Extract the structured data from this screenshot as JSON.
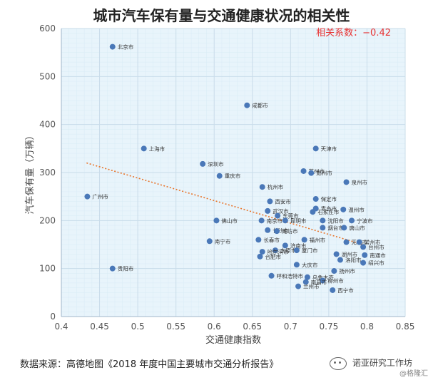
{
  "chart_data": {
    "type": "scatter",
    "title": "城市汽车保有量与交通健康状况的相关性",
    "xlabel": "交通健康指数",
    "ylabel": "汽车保有量（万辆）",
    "xlim": [
      0.4,
      0.85
    ],
    "ylim": [
      0,
      600
    ],
    "x_ticks": [
      "0.4",
      "0.45",
      "0.5",
      "0.55",
      "0.6",
      "0.65",
      "0.7",
      "0.75",
      "0.8",
      "0.85"
    ],
    "y_ticks": [
      "0",
      "100",
      "200",
      "300",
      "400",
      "500",
      "600"
    ],
    "grid": true,
    "annotation": "相关系数：−0.42",
    "trendline": {
      "x": [
        0.433,
        0.795
      ],
      "y": [
        320,
        150
      ]
    },
    "points": [
      {
        "label": "北京市",
        "x": 0.467,
        "y": 562
      },
      {
        "label": "成都市",
        "x": 0.643,
        "y": 440
      },
      {
        "label": "上海市",
        "x": 0.508,
        "y": 350
      },
      {
        "label": "天津市",
        "x": 0.733,
        "y": 350
      },
      {
        "label": "深圳市",
        "x": 0.585,
        "y": 318
      },
      {
        "label": "重庆市",
        "x": 0.607,
        "y": 293
      },
      {
        "label": "苏州市",
        "x": 0.717,
        "y": 303
      },
      {
        "label": "郑州市",
        "x": 0.727,
        "y": 299
      },
      {
        "label": "杭州市",
        "x": 0.663,
        "y": 270
      },
      {
        "label": "泉州市",
        "x": 0.773,
        "y": 280
      },
      {
        "label": "广州市",
        "x": 0.434,
        "y": 250
      },
      {
        "label": "西安市",
        "x": 0.673,
        "y": 240
      },
      {
        "label": "保定市",
        "x": 0.733,
        "y": 245
      },
      {
        "label": "青岛市",
        "x": 0.733,
        "y": 225
      },
      {
        "label": "温州市",
        "x": 0.769,
        "y": 223
      },
      {
        "label": "武汉市",
        "x": 0.67,
        "y": 220
      },
      {
        "label": "东莞市",
        "x": 0.683,
        "y": 210
      },
      {
        "label": "石家庄市",
        "x": 0.729,
        "y": 218
      },
      {
        "label": "佛山市",
        "x": 0.603,
        "y": 200
      },
      {
        "label": "南京市",
        "x": 0.662,
        "y": 200
      },
      {
        "label": "昆明市",
        "x": 0.693,
        "y": 200
      },
      {
        "label": "宁波市",
        "x": 0.78,
        "y": 200
      },
      {
        "label": "沈阳市",
        "x": 0.742,
        "y": 200
      },
      {
        "label": "烟台市",
        "x": 0.742,
        "y": 185
      },
      {
        "label": "唐山市",
        "x": 0.77,
        "y": 185
      },
      {
        "label": "长沙市",
        "x": 0.67,
        "y": 180
      },
      {
        "label": "潍坊市",
        "x": 0.682,
        "y": 178
      },
      {
        "label": "南宁市",
        "x": 0.594,
        "y": 157
      },
      {
        "label": "长春市",
        "x": 0.658,
        "y": 160
      },
      {
        "label": "福州市",
        "x": 0.718,
        "y": 160
      },
      {
        "label": "无锡市",
        "x": 0.773,
        "y": 155
      },
      {
        "label": "常州市",
        "x": 0.79,
        "y": 155
      },
      {
        "label": "济南市",
        "x": 0.693,
        "y": 148
      },
      {
        "label": "台州市",
        "x": 0.795,
        "y": 145
      },
      {
        "label": "太原市",
        "x": 0.68,
        "y": 138
      },
      {
        "label": "厦门市",
        "x": 0.708,
        "y": 138
      },
      {
        "label": "哈尔滨市",
        "x": 0.663,
        "y": 135
      },
      {
        "label": "合肥市",
        "x": 0.66,
        "y": 125
      },
      {
        "label": "湖州市",
        "x": 0.76,
        "y": 130
      },
      {
        "label": "南通市",
        "x": 0.797,
        "y": 128
      },
      {
        "label": "洛阳市",
        "x": 0.765,
        "y": 118
      },
      {
        "label": "绍兴市",
        "x": 0.795,
        "y": 112
      },
      {
        "label": "大庆市",
        "x": 0.708,
        "y": 108
      },
      {
        "label": "贵阳市",
        "x": 0.467,
        "y": 100
      },
      {
        "label": "扬州市",
        "x": 0.757,
        "y": 95
      },
      {
        "label": "乌鲁木齐",
        "x": 0.722,
        "y": 82
      },
      {
        "label": "呼和浩特市",
        "x": 0.675,
        "y": 85
      },
      {
        "label": "柳州市",
        "x": 0.742,
        "y": 75
      },
      {
        "label": "南昌市",
        "x": 0.72,
        "y": 72
      },
      {
        "label": "兰州市",
        "x": 0.71,
        "y": 63
      },
      {
        "label": "西宁市",
        "x": 0.755,
        "y": 55
      }
    ]
  },
  "footer": {
    "source": "数据来源：高德地图《2018 年度中国主要城市交通分析报告》",
    "watermark_brand": "诺亚研究工作坊",
    "watermark_handle": "@格隆汇"
  },
  "colors": {
    "point": "#4a78b8",
    "trendline": "#e8742a",
    "annotation": "#e83232",
    "plot_bg": "#e8f4fb",
    "grid": "#c9dcea"
  }
}
